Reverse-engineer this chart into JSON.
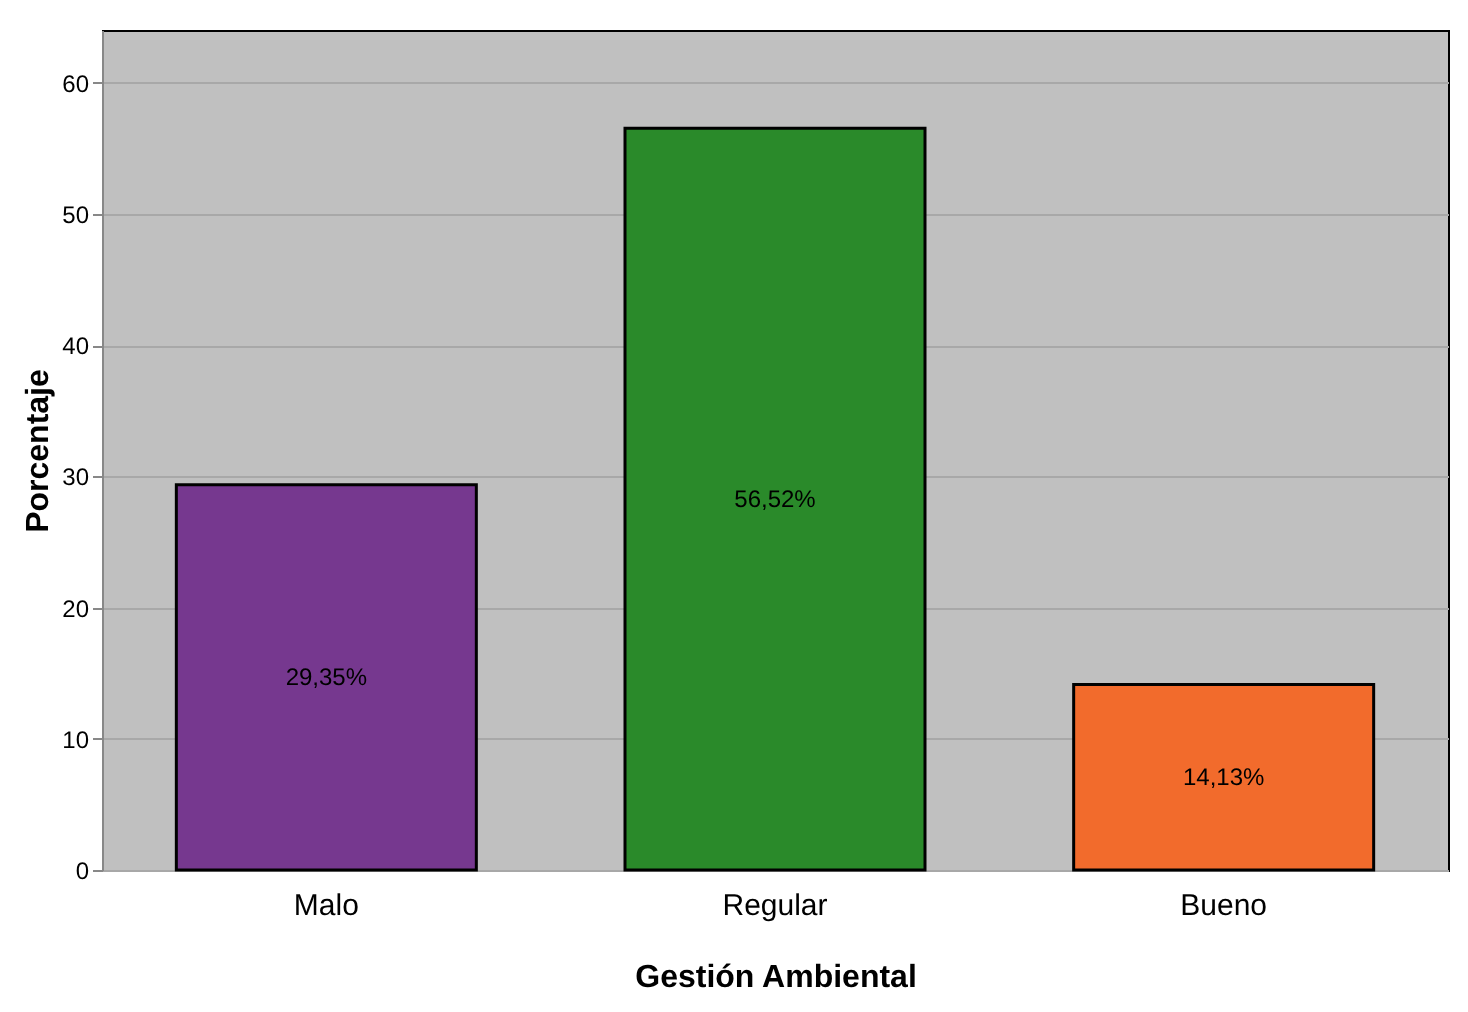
{
  "chart_data": {
    "type": "bar",
    "xlabel": "Gestión Ambiental",
    "ylabel": "Porcentaje",
    "categories": [
      "Malo",
      "Regular",
      "Bueno"
    ],
    "values": [
      29.35,
      56.52,
      14.13
    ],
    "colors": [
      "#76388f",
      "#2a8a2a",
      "#f26b2c"
    ],
    "value_labels": [
      "29,35%",
      "56,52%",
      "14,13%"
    ],
    "ylim": [
      0,
      64
    ],
    "yticks": [
      0,
      10,
      20,
      30,
      40,
      50,
      60
    ],
    "grid": "y"
  }
}
